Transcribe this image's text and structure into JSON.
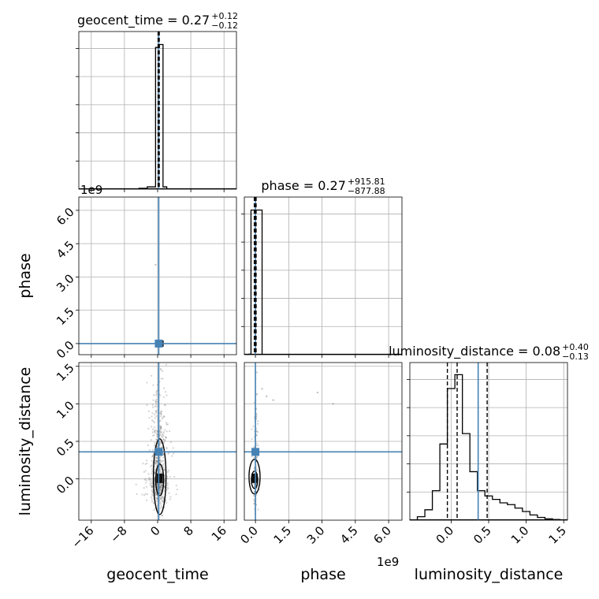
{
  "chart_data": {
    "type": "corner",
    "parameters": [
      "geocent_time",
      "phase",
      "luminosity_distance"
    ],
    "truth_color": "#4682b4",
    "panels": {
      "geocent_time_hist": {
        "type": "histogram",
        "title_name": "geocent_time",
        "title_value": "0.27",
        "title_plus": "+0.12",
        "title_minus": "−0.12",
        "xlim": [
          -19,
          19
        ],
        "bin_edges": [
          -6.5,
          -4.5,
          -2.5,
          -0.5,
          0.4,
          1.3,
          2.2
        ],
        "counts": [
          1,
          6,
          16,
          980,
          1000,
          16
        ],
        "ymax": 1090,
        "quantiles": [
          0.15,
          0.27,
          0.39
        ],
        "truth": 0.27
      },
      "phase_hist": {
        "type": "histogram",
        "title_name": "phase",
        "title_value": "0.27",
        "title_plus": "+915.81",
        "title_minus": "−877.88",
        "xlim": [
          -0.5,
          6.6
        ],
        "bin_edges": [
          -0.3,
          -0.2,
          0.0,
          0.3
        ],
        "counts": [
          3,
          1000,
          1000
        ],
        "ymax": 1090,
        "quantiles": [
          -0.05,
          0.0,
          0.03
        ],
        "truth": 0.0
      },
      "luminosity_distance_hist": {
        "type": "histogram",
        "title_name": "luminosity_distance",
        "title_value": "0.08",
        "title_plus": "+0.40",
        "title_minus": "−0.13",
        "xlim": [
          -0.55,
          1.55
        ],
        "bin_edges": [
          -0.45,
          -0.35,
          -0.25,
          -0.15,
          -0.05,
          0.05,
          0.15,
          0.25,
          0.35,
          0.45,
          0.55,
          0.65,
          0.75,
          0.85,
          0.95,
          1.05,
          1.15,
          1.25,
          1.35,
          1.45
        ],
        "counts": [
          10,
          30,
          85,
          220,
          380,
          420,
          250,
          140,
          85,
          70,
          60,
          50,
          45,
          35,
          25,
          15,
          8,
          4,
          2
        ],
        "ymax": 455,
        "quantiles": [
          -0.05,
          0.08,
          0.48
        ],
        "truth": 0.36
      },
      "geocent_time_vs_phase": {
        "type": "scatter-contour",
        "xlim": [
          -19,
          19
        ],
        "ylim": [
          -0.5,
          6.6
        ],
        "truth": [
          0.27,
          0.0
        ],
        "points": [
          [
            -0.5,
            3.55
          ],
          [
            0.3,
            0.0
          ],
          [
            0.8,
            0.0
          ]
        ]
      },
      "geocent_time_vs_luminosity_distance": {
        "type": "scatter-contour",
        "xlim": [
          -19,
          19
        ],
        "ylim": [
          -0.55,
          1.55
        ],
        "truth": [
          0.27,
          0.36
        ]
      },
      "phase_vs_luminosity_distance": {
        "type": "scatter-contour",
        "xlim": [
          -0.5,
          6.6
        ],
        "ylim": [
          -0.55,
          1.55
        ],
        "truth": [
          0.0,
          0.36
        ],
        "points": [
          [
            2.8,
            1.15
          ],
          [
            3.5,
            1.0
          ],
          [
            0.5,
            1.1
          ],
          [
            0.3,
            1.2
          ],
          [
            0.8,
            1.05
          ]
        ]
      }
    },
    "ticks": {
      "geocent_time": [
        "−16",
        "−8",
        "0",
        "8",
        "16"
      ],
      "geocent_time_values": [
        -16,
        -8,
        0,
        8,
        16
      ],
      "phase": [
        "0.0",
        "1.5",
        "3.0",
        "4.5",
        "6.0"
      ],
      "phase_values": [
        0,
        1.5,
        3,
        4.5,
        6
      ],
      "luminosity_distance_x": [
        "0.0",
        "0.5",
        "1.0",
        "1.5"
      ],
      "luminosity_distance_x_values": [
        0,
        0.5,
        1.0,
        1.5
      ],
      "luminosity_distance_y": [
        "0.0",
        "0.5",
        "1.0",
        "1.5"
      ],
      "luminosity_distance_y_values": [
        0,
        0.5,
        1.0,
        1.5
      ]
    },
    "offset_labels": {
      "phase_y": "1e9",
      "phase_x": "1e9"
    },
    "axis_labels": {
      "x": [
        "geocent_time",
        "phase",
        "luminosity_distance"
      ],
      "y": [
        "phase",
        "luminosity_distance"
      ]
    },
    "grid": true
  }
}
